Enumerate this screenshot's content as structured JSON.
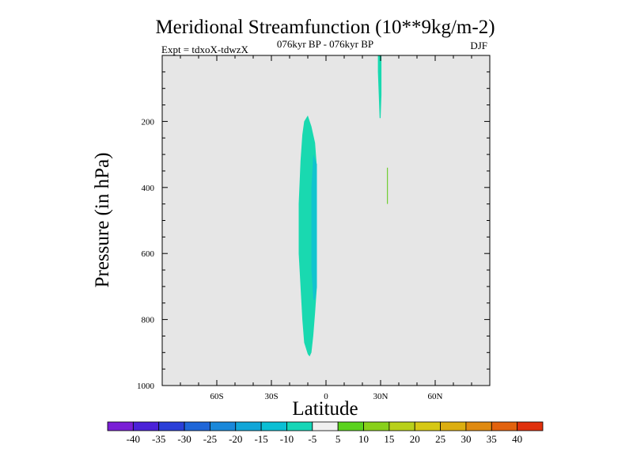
{
  "chart_data": {
    "type": "heatmap",
    "title": "Meridional Streamfunction (10**9kg/m-2)",
    "subtitle_left": "Expt = tdxoX-tdwzX",
    "subtitle_center": "076kyr BP - 076kyr BP",
    "subtitle_right": "DJF",
    "xlabel": "Latitude",
    "ylabel": "Pressure (in hPa)",
    "xlim": [
      -90,
      90
    ],
    "ylim": [
      1000,
      0
    ],
    "x_ticks": [
      {
        "value": -60,
        "label": "60S"
      },
      {
        "value": -30,
        "label": "30S"
      },
      {
        "value": 0,
        "label": "0"
      },
      {
        "value": 30,
        "label": "30N"
      },
      {
        "value": 60,
        "label": "60N"
      }
    ],
    "y_ticks": [
      {
        "value": 200,
        "label": "200"
      },
      {
        "value": 400,
        "label": "400"
      },
      {
        "value": 600,
        "label": "600"
      },
      {
        "value": 800,
        "label": "800"
      },
      {
        "value": 1000,
        "label": "1000"
      }
    ],
    "background_color": "#e6e6e6",
    "features": [
      {
        "name": "southern-cell",
        "interval": "-10 to -5",
        "color": "#19d9b0",
        "outline": [
          [
            -10,
            182
          ],
          [
            -8,
            215
          ],
          [
            -6,
            265
          ],
          [
            -5,
            340
          ],
          [
            -5,
            460
          ],
          [
            -5,
            600
          ],
          [
            -5,
            700
          ],
          [
            -6,
            780
          ],
          [
            -7,
            850
          ],
          [
            -8,
            900
          ],
          [
            -9,
            912
          ],
          [
            -10,
            905
          ],
          [
            -12,
            870
          ],
          [
            -13,
            800
          ],
          [
            -14,
            700
          ],
          [
            -15,
            600
          ],
          [
            -15,
            450
          ],
          [
            -14,
            320
          ],
          [
            -13,
            240
          ],
          [
            -12,
            200
          ]
        ]
      },
      {
        "name": "southern-cell-core",
        "interval": "-15 to -10",
        "color": "#11c4cf",
        "outline": [
          [
            -7,
            300
          ],
          [
            -5,
            330
          ],
          [
            -5,
            460
          ],
          [
            -5,
            600
          ],
          [
            -5,
            700
          ],
          [
            -6,
            740
          ],
          [
            -7,
            740
          ],
          [
            -8,
            650
          ],
          [
            -8,
            400
          ]
        ]
      },
      {
        "name": "upper-cell",
        "interval": "-10 to -5",
        "color": "#19d9b0",
        "outline": [
          [
            28.5,
            0
          ],
          [
            30.5,
            0
          ],
          [
            30.5,
            50
          ],
          [
            30.5,
            120
          ],
          [
            30,
            190
          ],
          [
            29.5,
            190
          ],
          [
            29,
            120
          ],
          [
            28.5,
            50
          ]
        ]
      },
      {
        "name": "mid-streak",
        "interval": "5 to 10",
        "color": "#66cc22",
        "outline": [
          [
            33.5,
            340
          ],
          [
            34,
            340
          ],
          [
            34,
            450
          ],
          [
            33.5,
            450
          ]
        ]
      }
    ],
    "colorbar": {
      "labels": [
        "-40",
        "-35",
        "-30",
        "-25",
        "-20",
        "-15",
        "-10",
        "-5",
        "5",
        "10",
        "15",
        "20",
        "25",
        "30",
        "35",
        "40"
      ],
      "colors": [
        "#7a1fd6",
        "#4b22d8",
        "#2a3fd8",
        "#1f66d8",
        "#1a88da",
        "#12a6d8",
        "#0bbfd4",
        "#16d6b7",
        "#f0f0f0",
        "#5ad21e",
        "#88d01a",
        "#b8d01a",
        "#d6c814",
        "#dcae10",
        "#e08a10",
        "#e2620e",
        "#e0300c"
      ]
    }
  }
}
